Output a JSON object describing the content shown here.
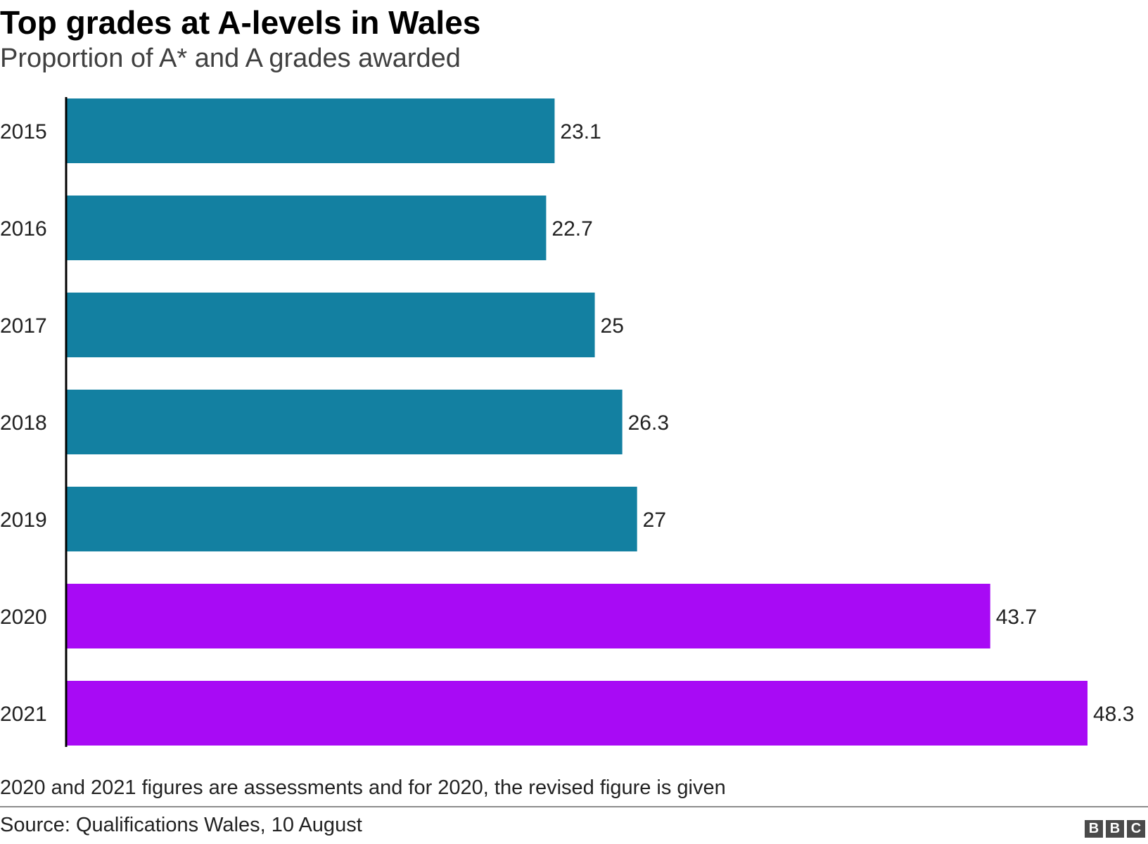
{
  "header": {
    "title": "Top grades at A-levels in Wales",
    "subtitle": "Proportion of A* and A grades awarded"
  },
  "footer": {
    "note": "2020 and 2021 figures are assessments and for 2020, the revised figure is given",
    "source": "Source: Qualifications Wales, 10 August",
    "logo_letters": [
      "B",
      "B",
      "C"
    ]
  },
  "chart_data": {
    "type": "bar",
    "orientation": "horizontal",
    "title": "Top grades at A-levels in Wales",
    "subtitle": "Proportion of A* and A grades awarded",
    "xlabel": "",
    "ylabel": "",
    "categories": [
      "2015",
      "2016",
      "2017",
      "2018",
      "2019",
      "2020",
      "2021"
    ],
    "values": [
      23.1,
      22.7,
      25,
      26.3,
      27,
      43.7,
      48.3
    ],
    "data_labels": [
      "23.1",
      "22.7",
      "25",
      "26.3",
      "27",
      "43.7",
      "48.3"
    ],
    "bar_colors": [
      "#1380a1",
      "#1380a1",
      "#1380a1",
      "#1380a1",
      "#1380a1",
      "#a80af5",
      "#a80af5"
    ],
    "xlim": [
      0,
      48.3
    ],
    "grid": false,
    "legend": "none"
  }
}
